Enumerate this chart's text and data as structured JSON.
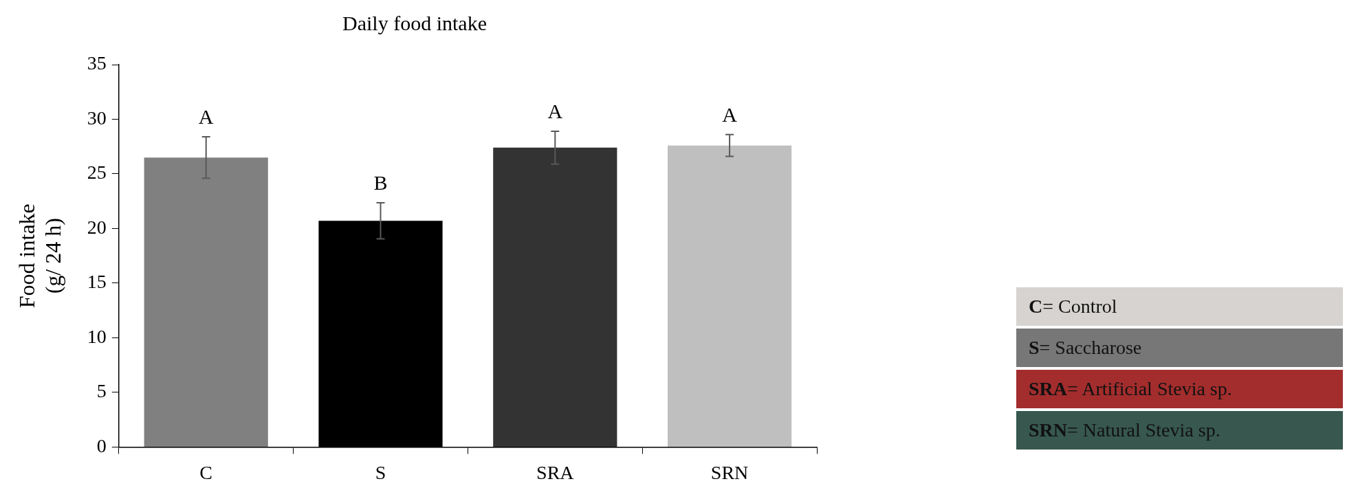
{
  "chart_data": {
    "type": "bar",
    "title": "Daily food intake",
    "ylabel": "Food intake\n(g/ 24 h)",
    "categories": [
      "C",
      "S",
      "SRA",
      "SRN"
    ],
    "values": [
      26.5,
      20.7,
      27.4,
      27.6
    ],
    "errors": [
      1.9,
      1.65,
      1.5,
      1.0
    ],
    "colors": [
      "#808080",
      "#000000",
      "#333333",
      "#bfbfbf"
    ],
    "ylim": [
      0,
      35
    ],
    "yticks": [
      0,
      5,
      10,
      15,
      20,
      25,
      30,
      35
    ],
    "grid": false,
    "legend": false,
    "annotations": [
      "A",
      "B",
      "A",
      "A",
      "C= Control",
      "S= Saccharose",
      "SRA= Artificial Stevia sp.",
      "SRN= Natural Stevia sp."
    ]
  }
}
